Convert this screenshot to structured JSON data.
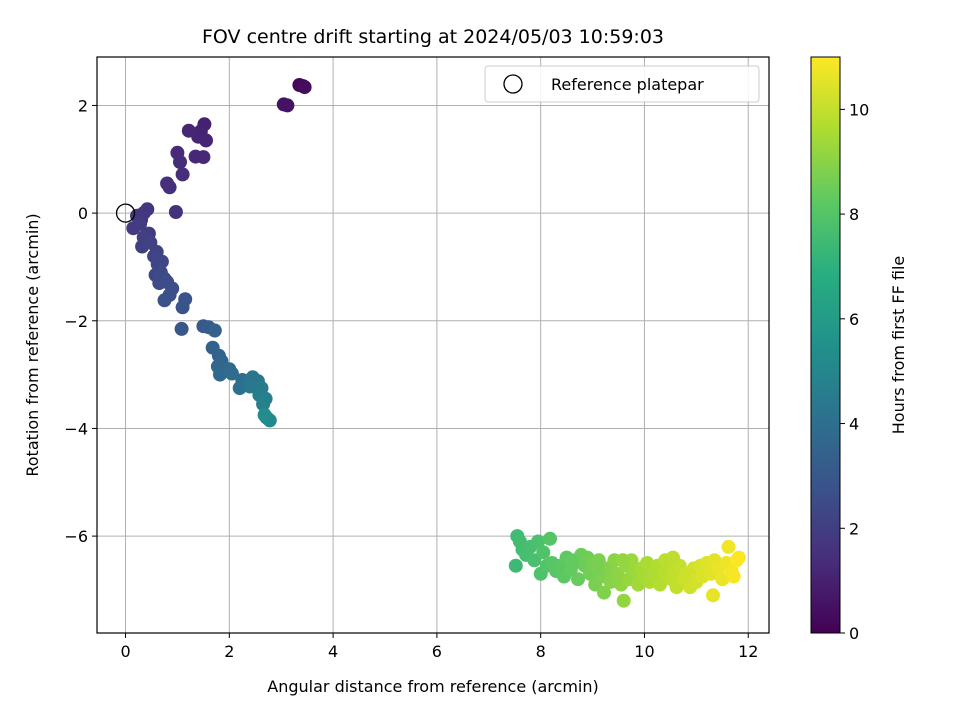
{
  "chart_data": {
    "type": "scatter",
    "title": "FOV centre drift starting at 2024/05/03 10:59:03",
    "xlabel": "Angular distance from reference (arcmin)",
    "ylabel": "Rotation from reference (arcmin)",
    "xlim": [
      -0.55,
      12.4
    ],
    "ylim": [
      -7.8,
      2.9
    ],
    "xticks": [
      0,
      2,
      4,
      6,
      8,
      10,
      12
    ],
    "yticks": [
      2,
      0,
      -2,
      -4,
      -6
    ],
    "xtick_labels": [
      "0",
      "2",
      "4",
      "6",
      "8",
      "10",
      "12"
    ],
    "ytick_labels": [
      "2",
      "0",
      "−2",
      "−4",
      "−6"
    ],
    "grid": true,
    "colormap": "viridis",
    "colorbar": {
      "label": "Hours from first FF file",
      "range": [
        0,
        11
      ],
      "ticks": [
        0,
        2,
        4,
        6,
        8,
        10
      ],
      "tick_labels": [
        "0",
        "2",
        "4",
        "6",
        "8",
        "10"
      ]
    },
    "legend": {
      "entries": [
        "Reference platepar"
      ],
      "placement": "top-right"
    },
    "reference_point": {
      "x": 0,
      "y": 0
    },
    "points": [
      [
        3.35,
        2.38,
        0.2
      ],
      [
        3.42,
        2.36,
        0.25
      ],
      [
        3.45,
        2.34,
        0.3
      ],
      [
        3.05,
        2.02,
        0.5
      ],
      [
        3.12,
        2.0,
        0.55
      ],
      [
        1.52,
        1.65,
        1.0
      ],
      [
        1.45,
        1.52,
        1.05
      ],
      [
        1.4,
        1.42,
        1.1
      ],
      [
        1.55,
        1.35,
        1.12
      ],
      [
        1.22,
        1.53,
        1.15
      ],
      [
        1.35,
        1.05,
        1.2
      ],
      [
        1.5,
        1.04,
        1.25
      ],
      [
        1.0,
        1.12,
        1.3
      ],
      [
        1.05,
        0.95,
        1.35
      ],
      [
        1.1,
        0.72,
        1.4
      ],
      [
        0.8,
        0.55,
        1.45
      ],
      [
        0.85,
        0.48,
        1.5
      ],
      [
        0.97,
        0.02,
        1.55
      ],
      [
        0.42,
        0.07,
        1.65
      ],
      [
        0.35,
        0.0,
        1.7
      ],
      [
        0.22,
        -0.05,
        1.75
      ],
      [
        0.3,
        -0.12,
        1.8
      ],
      [
        0.15,
        -0.28,
        1.85
      ],
      [
        0.28,
        -0.2,
        1.9
      ],
      [
        0.45,
        -0.38,
        1.95
      ],
      [
        0.35,
        -0.45,
        2.0
      ],
      [
        0.32,
        -0.62,
        2.05
      ],
      [
        0.48,
        -0.55,
        2.1
      ],
      [
        0.6,
        -0.72,
        2.15
      ],
      [
        0.55,
        -0.8,
        2.2
      ],
      [
        0.62,
        -0.95,
        2.25
      ],
      [
        0.7,
        -0.9,
        2.3
      ],
      [
        0.58,
        -1.15,
        2.35
      ],
      [
        0.68,
        -1.1,
        2.4
      ],
      [
        0.75,
        -1.22,
        2.45
      ],
      [
        0.65,
        -1.3,
        2.5
      ],
      [
        0.8,
        -1.28,
        2.55
      ],
      [
        0.9,
        -1.4,
        2.6
      ],
      [
        0.85,
        -1.52,
        2.65
      ],
      [
        0.75,
        -1.62,
        2.7
      ],
      [
        1.15,
        -1.6,
        2.8
      ],
      [
        1.1,
        -1.75,
        2.85
      ],
      [
        1.08,
        -2.15,
        2.95
      ],
      [
        1.5,
        -2.1,
        3.1
      ],
      [
        1.6,
        -2.12,
        3.2
      ],
      [
        1.72,
        -2.18,
        3.3
      ],
      [
        1.68,
        -2.5,
        3.4
      ],
      [
        1.8,
        -2.65,
        3.5
      ],
      [
        1.85,
        -2.75,
        3.55
      ],
      [
        1.78,
        -2.85,
        3.6
      ],
      [
        1.9,
        -2.88,
        3.65
      ],
      [
        1.82,
        -3.0,
        3.7
      ],
      [
        2.0,
        -2.9,
        3.8
      ],
      [
        2.05,
        -2.98,
        3.85
      ],
      [
        2.25,
        -3.1,
        3.9
      ],
      [
        2.2,
        -3.25,
        4.0
      ],
      [
        2.35,
        -3.15,
        4.1
      ],
      [
        2.45,
        -3.05,
        4.2
      ],
      [
        2.55,
        -3.12,
        4.3
      ],
      [
        2.4,
        -3.22,
        4.4
      ],
      [
        2.62,
        -3.25,
        4.5
      ],
      [
        2.58,
        -3.38,
        4.6
      ],
      [
        2.7,
        -3.45,
        4.7
      ],
      [
        2.65,
        -3.55,
        4.8
      ],
      [
        2.72,
        -3.8,
        5.0
      ],
      [
        2.78,
        -3.85,
        5.2
      ],
      [
        2.68,
        -3.75,
        5.3
      ],
      [
        7.52,
        -6.55,
        7.4
      ],
      [
        7.55,
        -6.0,
        7.5
      ],
      [
        7.6,
        -6.1,
        7.55
      ],
      [
        7.65,
        -6.25,
        7.6
      ],
      [
        7.72,
        -6.35,
        7.65
      ],
      [
        7.8,
        -6.2,
        7.7
      ],
      [
        7.88,
        -6.45,
        7.75
      ],
      [
        7.95,
        -6.1,
        7.8
      ],
      [
        8.0,
        -6.7,
        7.85
      ],
      [
        8.05,
        -6.3,
        7.9
      ],
      [
        8.12,
        -6.55,
        7.95
      ],
      [
        8.18,
        -6.05,
        8.0
      ],
      [
        8.22,
        -6.5,
        8.05
      ],
      [
        8.3,
        -6.65,
        8.1
      ],
      [
        8.38,
        -6.55,
        8.15
      ],
      [
        8.45,
        -6.75,
        8.2
      ],
      [
        8.5,
        -6.4,
        8.25
      ],
      [
        8.58,
        -6.62,
        8.3
      ],
      [
        8.65,
        -6.5,
        8.35
      ],
      [
        8.72,
        -6.8,
        8.4
      ],
      [
        8.78,
        -6.35,
        8.45
      ],
      [
        8.85,
        -6.55,
        8.5
      ],
      [
        8.9,
        -6.4,
        8.55
      ],
      [
        8.95,
        -6.7,
        8.6
      ],
      [
        9.0,
        -6.5,
        8.65
      ],
      [
        9.05,
        -6.9,
        8.7
      ],
      [
        9.12,
        -6.45,
        8.75
      ],
      [
        9.18,
        -6.75,
        8.8
      ],
      [
        9.22,
        -7.05,
        8.85
      ],
      [
        9.3,
        -6.6,
        8.9
      ],
      [
        9.35,
        -6.85,
        8.95
      ],
      [
        9.42,
        -6.45,
        9.0
      ],
      [
        9.48,
        -6.7,
        9.05
      ],
      [
        9.55,
        -6.9,
        9.1
      ],
      [
        9.6,
        -7.2,
        9.15
      ],
      [
        9.65,
        -6.55,
        9.2
      ],
      [
        9.7,
        -6.8,
        9.25
      ],
      [
        9.75,
        -6.45,
        9.3
      ],
      [
        9.82,
        -6.65,
        9.35
      ],
      [
        9.88,
        -6.9,
        9.4
      ],
      [
        9.95,
        -6.6,
        9.45
      ],
      [
        10.0,
        -6.75,
        9.5
      ],
      [
        10.05,
        -6.5,
        9.55
      ],
      [
        10.1,
        -6.85,
        9.6
      ],
      [
        10.18,
        -6.7,
        9.65
      ],
      [
        10.25,
        -6.55,
        9.7
      ],
      [
        10.3,
        -6.9,
        9.75
      ],
      [
        10.38,
        -6.7,
        9.8
      ],
      [
        10.45,
        -6.5,
        9.85
      ],
      [
        10.52,
        -6.8,
        9.9
      ],
      [
        10.58,
        -6.65,
        9.95
      ],
      [
        10.62,
        -6.95,
        10.0
      ],
      [
        10.68,
        -6.55,
        10.05
      ],
      [
        10.75,
        -6.8,
        10.1
      ],
      [
        10.8,
        -6.7,
        10.15
      ],
      [
        10.88,
        -6.95,
        10.2
      ],
      [
        10.95,
        -6.6,
        10.25
      ],
      [
        11.0,
        -6.85,
        10.3
      ],
      [
        11.08,
        -6.55,
        10.35
      ],
      [
        11.12,
        -6.75,
        10.4
      ],
      [
        11.2,
        -6.5,
        10.45
      ],
      [
        11.28,
        -6.7,
        10.5
      ],
      [
        11.35,
        -6.45,
        10.55
      ],
      [
        11.32,
        -7.1,
        10.6
      ],
      [
        11.42,
        -6.6,
        10.65
      ],
      [
        11.5,
        -6.8,
        10.7
      ],
      [
        11.58,
        -6.5,
        10.75
      ],
      [
        11.62,
        -6.2,
        10.8
      ],
      [
        11.68,
        -6.65,
        10.85
      ],
      [
        11.72,
        -6.75,
        10.9
      ],
      [
        11.78,
        -6.45,
        10.95
      ],
      [
        11.82,
        -6.4,
        11.0
      ],
      [
        9.58,
        -6.45,
        9.18
      ],
      [
        10.4,
        -6.45,
        9.82
      ],
      [
        10.55,
        -6.4,
        9.9
      ],
      [
        8.6,
        -6.45,
        8.32
      ],
      [
        9.1,
        -6.6,
        8.72
      ]
    ]
  }
}
